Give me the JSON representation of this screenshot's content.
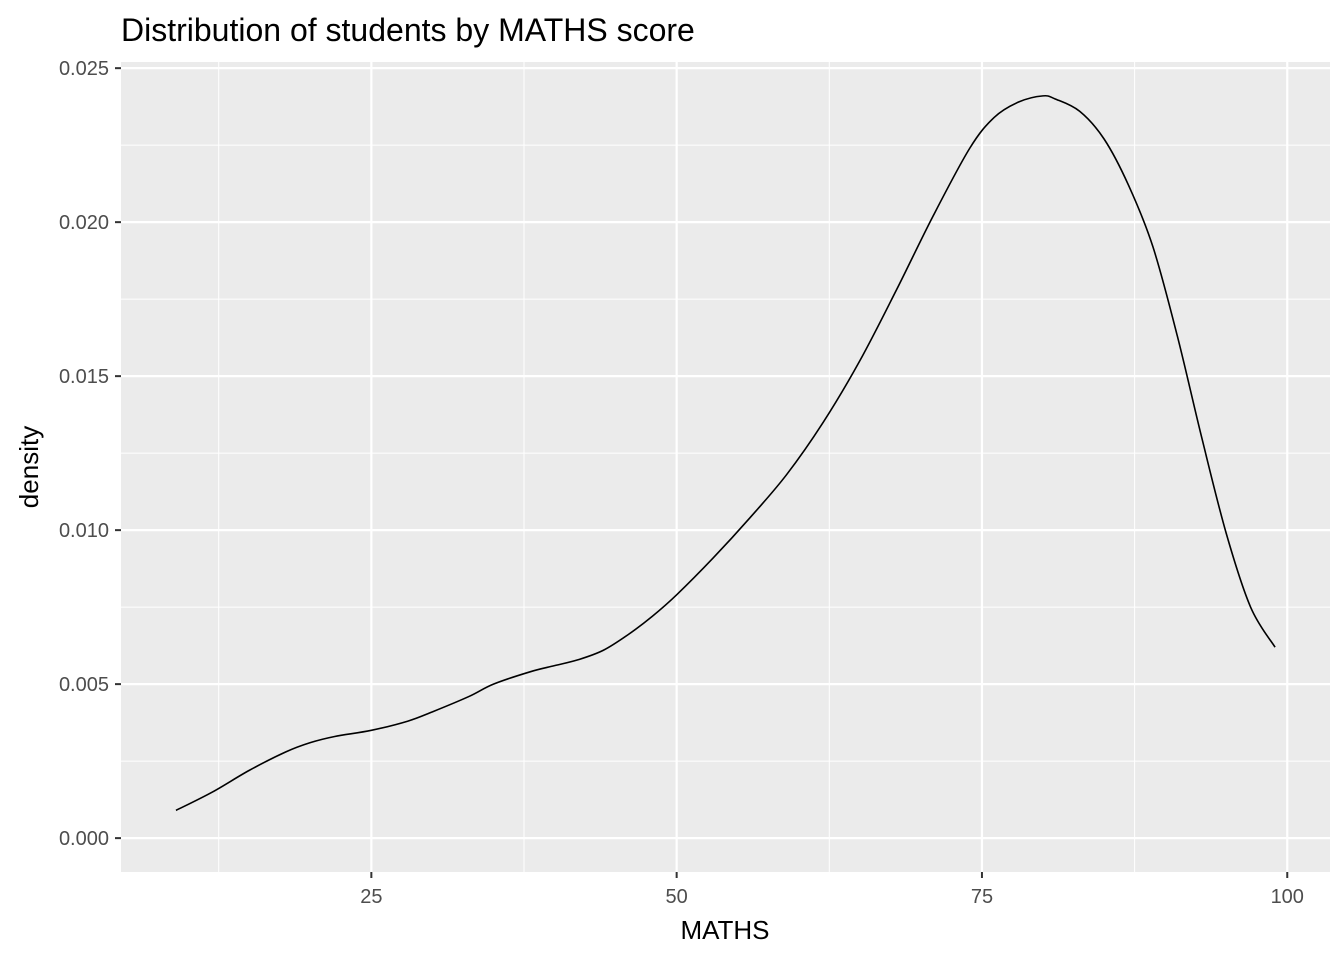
{
  "chart_data": {
    "type": "area",
    "geom": "density",
    "title": "Distribution of students by MATHS score",
    "xlabel": "MATHS",
    "ylabel": "density",
    "xlim": [
      4.5,
      103.5
    ],
    "ylim": [
      -0.0011,
      0.0252
    ],
    "x_ticks": [
      25,
      50,
      75,
      100
    ],
    "x_tick_labels": [
      "25",
      "50",
      "75",
      "100"
    ],
    "y_ticks": [
      0.0,
      0.005,
      0.01,
      0.015,
      0.02,
      0.025
    ],
    "y_tick_labels": [
      "0.000",
      "0.005",
      "0.010",
      "0.015",
      "0.020",
      "0.025"
    ],
    "grid": true,
    "panel_background": "#ebebeb",
    "grid_color": "#ffffff",
    "line_color": "#000000",
    "fill": "none",
    "x": [
      9,
      12,
      15,
      18,
      20,
      22,
      25,
      28,
      30,
      33,
      35,
      38,
      40,
      42,
      44,
      46,
      48,
      50,
      53,
      56,
      59,
      62,
      65,
      68,
      71,
      74,
      76,
      78,
      80,
      81,
      83,
      85,
      87,
      89,
      91,
      93,
      95,
      97,
      99
    ],
    "y": [
      0.0009,
      0.0015,
      0.0022,
      0.0028,
      0.0031,
      0.0033,
      0.0035,
      0.0038,
      0.0041,
      0.0046,
      0.005,
      0.0054,
      0.0056,
      0.0058,
      0.0061,
      0.0066,
      0.0072,
      0.0079,
      0.0091,
      0.0104,
      0.0118,
      0.0135,
      0.0155,
      0.0178,
      0.0202,
      0.0224,
      0.0234,
      0.0239,
      0.0241,
      0.024,
      0.0236,
      0.0227,
      0.0212,
      0.0192,
      0.0163,
      0.013,
      0.0099,
      0.0075,
      0.0062
    ]
  }
}
